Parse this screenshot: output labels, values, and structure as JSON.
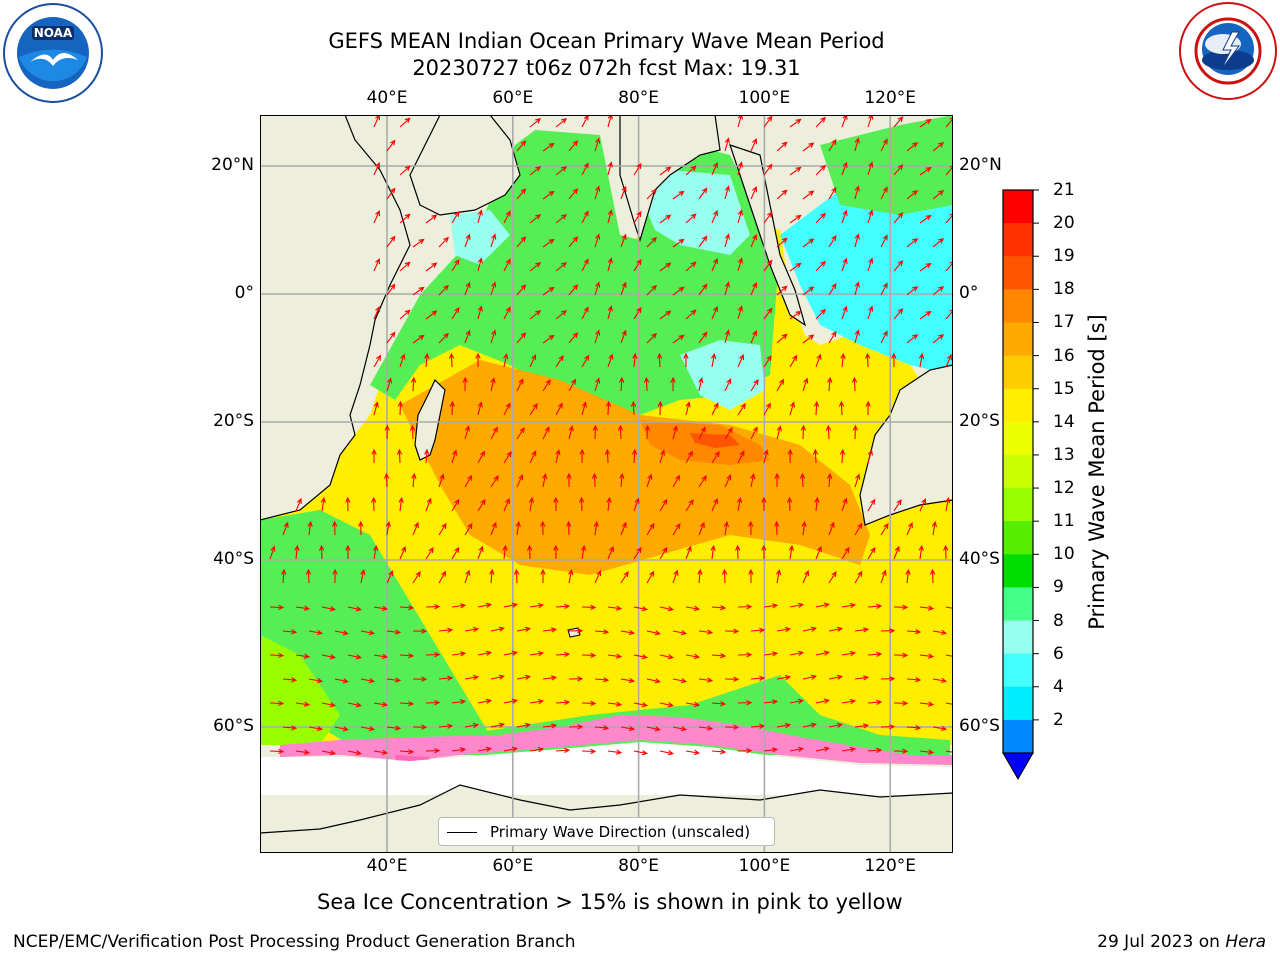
{
  "title": {
    "line1": "GEFS MEAN Indian Ocean Primary Wave Mean Period",
    "line2": "20230727 t06z 072h fcst   Max: 19.31"
  },
  "logos": {
    "left": "noaa-logo",
    "right": "national-weather-service-logo"
  },
  "map": {
    "lon_ticks": [
      "40°E",
      "60°E",
      "80°E",
      "100°E",
      "120°E"
    ],
    "lat_ticks": [
      "20°N",
      "0°",
      "20°S",
      "40°S",
      "60°S"
    ],
    "lon_values": [
      40,
      60,
      80,
      100,
      120
    ],
    "lat_values": [
      20,
      0,
      -20,
      -40,
      -60
    ],
    "lon_range": [
      20,
      130
    ],
    "lat_range": [
      -70,
      30
    ],
    "grid": true,
    "land_color": "#eeeedd",
    "arrow_color": "#ff0000",
    "legend_label": "Primary Wave Direction (unscaled)"
  },
  "colorbar": {
    "label": "Primary Wave Mean Period [s]",
    "ticks": [
      "21",
      "20",
      "19",
      "18",
      "17",
      "16",
      "15",
      "14",
      "13",
      "12",
      "11",
      "10",
      "9",
      "8",
      "6",
      "4",
      "2"
    ],
    "colors": [
      "#ff0000",
      "#ff3300",
      "#ff5500",
      "#ff8800",
      "#ffaa00",
      "#ffcc00",
      "#ffee00",
      "#eeff00",
      "#ccff00",
      "#99ff00",
      "#55ee00",
      "#00dd00",
      "#44ff88",
      "#99ffee",
      "#44ffff",
      "#00eeff",
      "#0088ff"
    ],
    "underflow_color": "#0000ff"
  },
  "notes": {
    "sea_ice": "Sea Ice Concentration > 15% is shown in pink to yellow"
  },
  "footer": {
    "left": "NCEP/EMC/Verification Post Processing Product Generation Branch",
    "date": "29 Jul 2023 on ",
    "host": "Hera"
  }
}
